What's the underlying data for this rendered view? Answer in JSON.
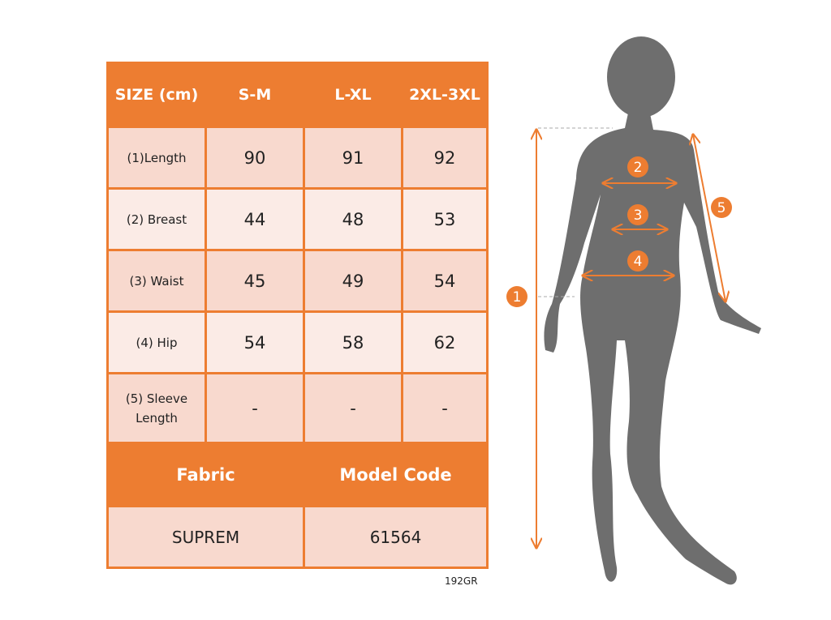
{
  "table": {
    "header": [
      "SIZE (cm)",
      "S-M",
      "L-XL",
      "2XL-3XL"
    ],
    "rows": [
      {
        "label": "(1)Length",
        "values": [
          "90",
          "91",
          "92"
        ]
      },
      {
        "label": "(2) Breast",
        "values": [
          "44",
          "48",
          "53"
        ]
      },
      {
        "label": "(3) Waist",
        "values": [
          "45",
          "49",
          "54"
        ]
      },
      {
        "label": "(4) Hip",
        "values": [
          "54",
          "58",
          "62"
        ]
      },
      {
        "label": "(5) Sleeve Length",
        "values": [
          "-",
          "-",
          "-"
        ]
      }
    ],
    "footer_headers": [
      "Fabric",
      "Model Code"
    ],
    "footer_values": [
      "SUPREM",
      "61564"
    ]
  },
  "product_code": "192GR",
  "figure": {
    "markers": [
      "1",
      "2",
      "3",
      "4",
      "5"
    ],
    "accent_color": "#ED7D31",
    "silhouette_color": "#6E6E6E"
  }
}
